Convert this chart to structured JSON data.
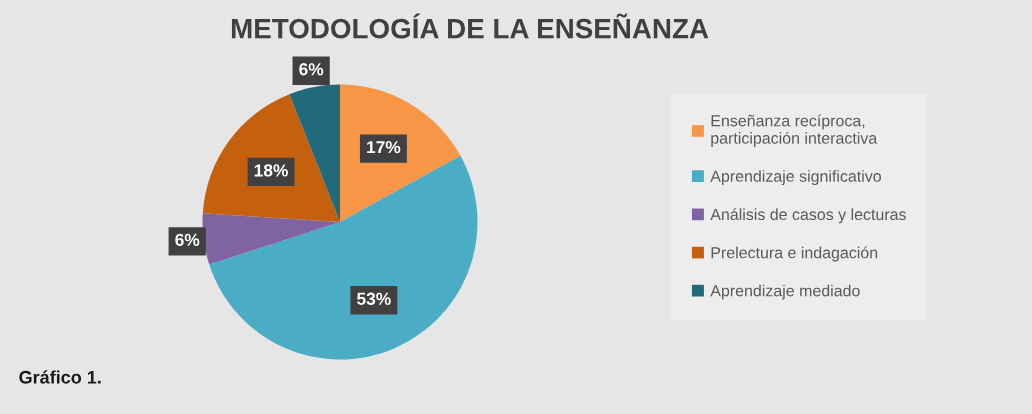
{
  "chart_data": {
    "type": "pie",
    "title": "METODOLOGÍA DE LA ENSEÑANZA",
    "categories": [
      "Enseñanza recíproca,\nparticipación interactiva",
      "Aprendizaje significativo",
      "Análisis de casos y lecturas",
      "Prelectura e indagación",
      "Aprendizaje mediado"
    ],
    "values": [
      17,
      53,
      6,
      18,
      6
    ],
    "colors": [
      "#f79646",
      "#4bacc6",
      "#8064a2",
      "#c5600e",
      "#216a7c"
    ],
    "value_labels": [
      "17%",
      "53%",
      "6%",
      "18%",
      "6%"
    ],
    "legend": "right",
    "annotations": [
      "Gráfico 1."
    ]
  }
}
